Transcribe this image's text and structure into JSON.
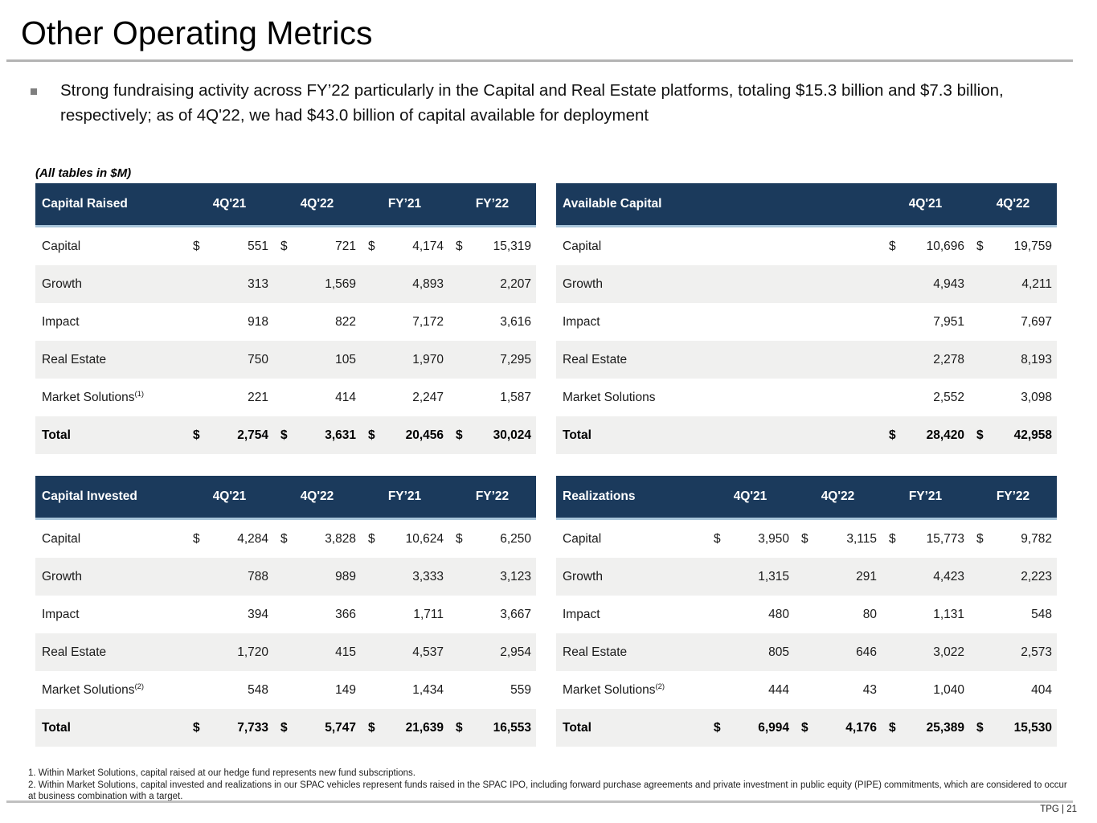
{
  "slide": {
    "title": "Other Operating Metrics",
    "bullet": "Strong fundraising activity across FY’22 particularly in the Capital and Real Estate platforms, totaling $15.3 billion and $7.3 billion, respectively; as of 4Q'22, we had $43.0 billion of capital available for deployment",
    "tables_note": "(All tables in $M)",
    "currency_symbol": "$",
    "footnotes": [
      "1. Within Market Solutions, capital raised at our hedge fund represents new fund subscriptions.",
      "2. Within Market Solutions, capital invested and realizations in our SPAC vehicles represent funds raised in the SPAC IPO, including forward purchase agreements and private investment in public equity (PIPE) commitments, which are considered to occur at business combination with a target."
    ],
    "footer": "TPG | 21"
  },
  "colors": {
    "header_navy": "#1b3a5c",
    "header_underline": "#a8c5da",
    "row_stripe": "#f0f0ef",
    "rule_gray": "#b3b3b3"
  },
  "tables": [
    {
      "name": "Capital Raised",
      "columns": [
        "4Q'21",
        "4Q'22",
        "FY’21",
        "FY’22"
      ],
      "rows": [
        {
          "label": "Capital",
          "dollar": true,
          "values": [
            "551",
            "721",
            "4,174",
            "15,319"
          ]
        },
        {
          "label": "Growth",
          "values": [
            "313",
            "1,569",
            "4,893",
            "2,207"
          ]
        },
        {
          "label": "Impact",
          "values": [
            "918",
            "822",
            "7,172",
            "3,616"
          ]
        },
        {
          "label": "Real Estate",
          "values": [
            "750",
            "105",
            "1,970",
            "7,295"
          ]
        },
        {
          "label": "Market Solutions",
          "sup": "(1)",
          "values": [
            "221",
            "414",
            "2,247",
            "1,587"
          ]
        },
        {
          "label": "Total",
          "dollar": true,
          "total": true,
          "values": [
            "2,754",
            "3,631",
            "20,456",
            "30,024"
          ]
        }
      ]
    },
    {
      "name": "Available Capital",
      "columns": [
        "4Q'21",
        "4Q'22"
      ],
      "rows": [
        {
          "label": "Capital",
          "dollar": true,
          "values": [
            "10,696",
            "19,759"
          ]
        },
        {
          "label": "Growth",
          "values": [
            "4,943",
            "4,211"
          ]
        },
        {
          "label": "Impact",
          "values": [
            "7,951",
            "7,697"
          ]
        },
        {
          "label": "Real Estate",
          "values": [
            "2,278",
            "8,193"
          ]
        },
        {
          "label": "Market Solutions",
          "values": [
            "2,552",
            "3,098"
          ]
        },
        {
          "label": "Total",
          "dollar": true,
          "total": true,
          "values": [
            "28,420",
            "42,958"
          ]
        }
      ]
    },
    {
      "name": "Capital Invested",
      "columns": [
        "4Q'21",
        "4Q'22",
        "FY’21",
        "FY’22"
      ],
      "rows": [
        {
          "label": "Capital",
          "dollar": true,
          "values": [
            "4,284",
            "3,828",
            "10,624",
            "6,250"
          ]
        },
        {
          "label": "Growth",
          "values": [
            "788",
            "989",
            "3,333",
            "3,123"
          ]
        },
        {
          "label": "Impact",
          "values": [
            "394",
            "366",
            "1,711",
            "3,667"
          ]
        },
        {
          "label": "Real Estate",
          "values": [
            "1,720",
            "415",
            "4,537",
            "2,954"
          ]
        },
        {
          "label": "Market Solutions",
          "sup": "(2)",
          "values": [
            "548",
            "149",
            "1,434",
            "559"
          ]
        },
        {
          "label": "Total",
          "dollar": true,
          "total": true,
          "values": [
            "7,733",
            "5,747",
            "21,639",
            "16,553"
          ]
        }
      ]
    },
    {
      "name": "Realizations",
      "columns": [
        "4Q'21",
        "4Q'22",
        "FY’21",
        "FY’22"
      ],
      "rows": [
        {
          "label": "Capital",
          "dollar": true,
          "values": [
            "3,950",
            "3,115",
            "15,773",
            "9,782"
          ]
        },
        {
          "label": "Growth",
          "values": [
            "1,315",
            "291",
            "4,423",
            "2,223"
          ]
        },
        {
          "label": "Impact",
          "values": [
            "480",
            "80",
            "1,131",
            "548"
          ]
        },
        {
          "label": "Real Estate",
          "values": [
            "805",
            "646",
            "3,022",
            "2,573"
          ]
        },
        {
          "label": "Market Solutions",
          "sup": "(2)",
          "values": [
            "444",
            "43",
            "1,040",
            "404"
          ]
        },
        {
          "label": "Total",
          "dollar": true,
          "total": true,
          "values": [
            "6,994",
            "4,176",
            "25,389",
            "15,530"
          ]
        }
      ]
    }
  ]
}
